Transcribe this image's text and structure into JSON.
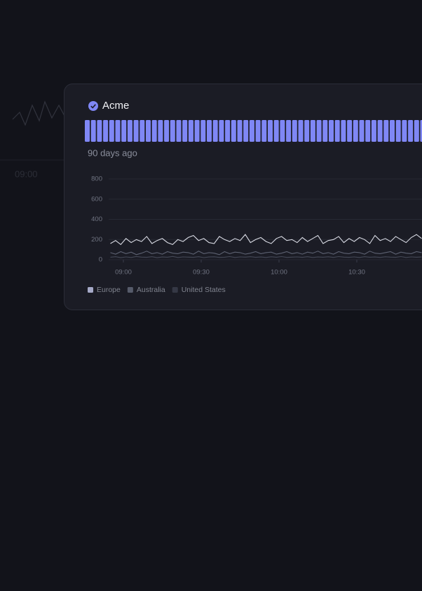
{
  "header": {
    "title": "Acme"
  },
  "uptime_caption": "90 days ago",
  "background_chart": {
    "x_label": "09:00"
  },
  "chart_data": {
    "type": "line",
    "x": [
      -5,
      -3,
      -1,
      1,
      3,
      5,
      7,
      9,
      11,
      13,
      15,
      17,
      19,
      21,
      23,
      25,
      27,
      29,
      31,
      33,
      35,
      37,
      39,
      41,
      43,
      45,
      47,
      49,
      51,
      53,
      55,
      57,
      59,
      61,
      63,
      65,
      67,
      69,
      71,
      73,
      75,
      77,
      79,
      81,
      83,
      85,
      87,
      89,
      91,
      93,
      95,
      97,
      99,
      101,
      103,
      105,
      107,
      109,
      111,
      113,
      115
    ],
    "xlim": [
      -5.7,
      115
    ],
    "xticks": [
      {
        "value": 0,
        "label": "09:00"
      },
      {
        "value": 30,
        "label": "09:30"
      },
      {
        "value": 60,
        "label": "10:00"
      },
      {
        "value": 90,
        "label": "10:30"
      }
    ],
    "ylim": [
      0,
      800
    ],
    "yticks": [
      0,
      200,
      400,
      600,
      800
    ],
    "grid": true,
    "series": [
      {
        "name": "Europe",
        "color": "#d9dbe4",
        "legend_color": "#a6aac8",
        "values": [
          160,
          190,
          150,
          210,
          170,
          200,
          180,
          230,
          160,
          190,
          210,
          170,
          150,
          200,
          180,
          220,
          240,
          190,
          210,
          170,
          160,
          230,
          200,
          180,
          210,
          190,
          250,
          170,
          200,
          220,
          180,
          160,
          210,
          230,
          190,
          200,
          170,
          220,
          180,
          210,
          240,
          160,
          190,
          200,
          230,
          170,
          210,
          180,
          220,
          200,
          160,
          240,
          190,
          210,
          180,
          230,
          200,
          170,
          220,
          250,
          210
        ]
      },
      {
        "name": "Australia",
        "color": "#5d6272",
        "legend_color": "#565b6a",
        "values": [
          70,
          55,
          80,
          60,
          75,
          50,
          65,
          85,
          60,
          70,
          55,
          80,
          65,
          60,
          75,
          70,
          55,
          85,
          60,
          70,
          65,
          50,
          80,
          60,
          75,
          70,
          55,
          65,
          80,
          60,
          70,
          75,
          55,
          65,
          80,
          60,
          70,
          55,
          75,
          65,
          85,
          60,
          70,
          55,
          80,
          65,
          60,
          75,
          70,
          55,
          85,
          65,
          60,
          70,
          80,
          55,
          75,
          65,
          60,
          80,
          70
        ]
      },
      {
        "name": "United States",
        "color": "#454957",
        "legend_color": "#353845",
        "values": [
          25,
          30,
          20,
          28,
          22,
          32,
          26,
          24,
          30,
          20,
          27,
          25,
          33,
          22,
          28,
          26,
          24,
          30,
          21,
          27,
          29,
          23,
          25,
          31,
          22,
          28,
          26,
          30,
          24,
          27,
          22,
          29,
          25,
          31,
          23,
          26,
          28,
          24,
          30,
          22,
          27,
          25,
          29,
          23,
          31,
          26,
          24,
          28,
          22,
          30,
          25,
          27,
          23,
          29,
          26,
          24,
          31,
          22,
          28,
          25,
          27
        ]
      }
    ]
  }
}
